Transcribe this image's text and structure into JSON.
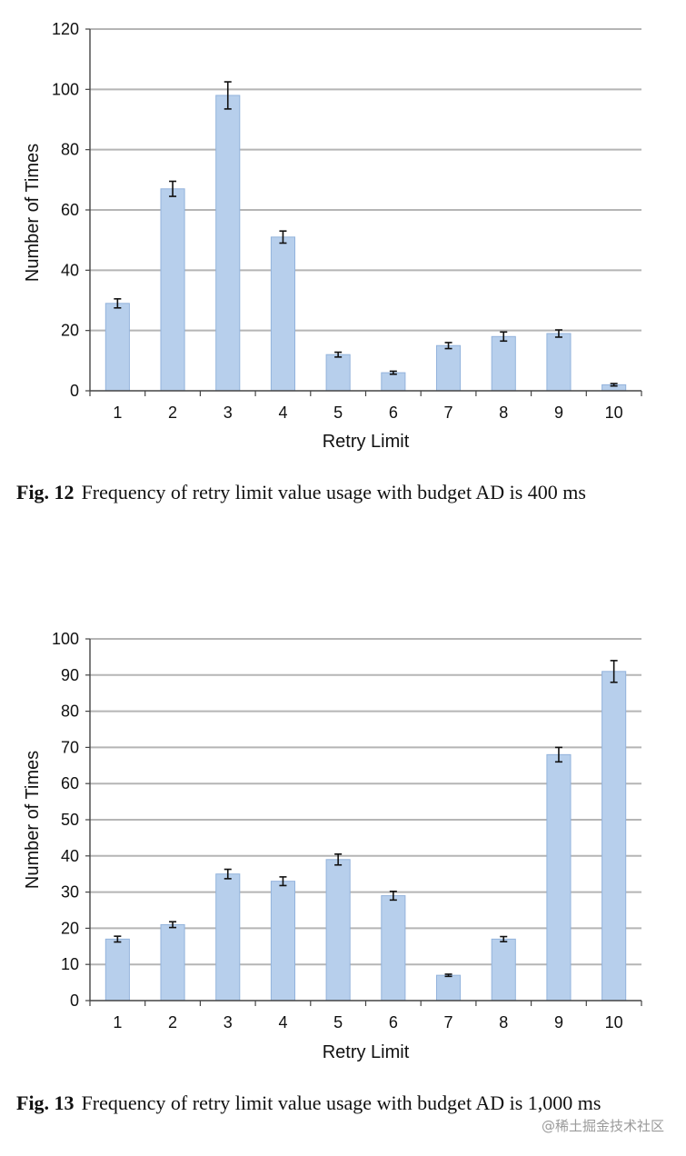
{
  "chart_data": [
    {
      "type": "bar",
      "categories": [
        "1",
        "2",
        "3",
        "4",
        "5",
        "6",
        "7",
        "8",
        "9",
        "10"
      ],
      "values": [
        29,
        67,
        98,
        51,
        12,
        6,
        15,
        18,
        19,
        2
      ],
      "errors": [
        1.5,
        2.5,
        4.5,
        2.0,
        0.8,
        0.5,
        1.0,
        1.5,
        1.2,
        0.4
      ],
      "xlabel": "Retry Limit",
      "ylabel": "Number of Times",
      "ylim": [
        0,
        120
      ],
      "yticks": [
        0,
        20,
        40,
        60,
        80,
        100,
        120
      ],
      "grid": true
    },
    {
      "type": "bar",
      "categories": [
        "1",
        "2",
        "3",
        "4",
        "5",
        "6",
        "7",
        "8",
        "9",
        "10"
      ],
      "values": [
        17,
        21,
        35,
        33,
        39,
        29,
        7,
        17,
        68,
        91
      ],
      "errors": [
        0.8,
        0.8,
        1.3,
        1.2,
        1.5,
        1.2,
        0.3,
        0.7,
        2.0,
        3.0
      ],
      "xlabel": "Retry Limit",
      "ylabel": "Number of Times",
      "ylim": [
        0,
        100
      ],
      "yticks": [
        0,
        10,
        20,
        30,
        40,
        50,
        60,
        70,
        80,
        90,
        100
      ],
      "grid": true
    }
  ],
  "colors": {
    "bar": "#b7cfec",
    "bar_edge": "#93b3dc",
    "grid": "#b5b5b5",
    "axis": "#444444"
  },
  "captions": [
    {
      "label": "Fig. 12",
      "text": "Frequency of retry limit value usage with budget AD is 400 ms"
    },
    {
      "label": "Fig. 13",
      "text": "Frequency of retry limit value usage with budget AD is 1,000 ms"
    }
  ],
  "watermark": "@稀土掘金技术社区"
}
